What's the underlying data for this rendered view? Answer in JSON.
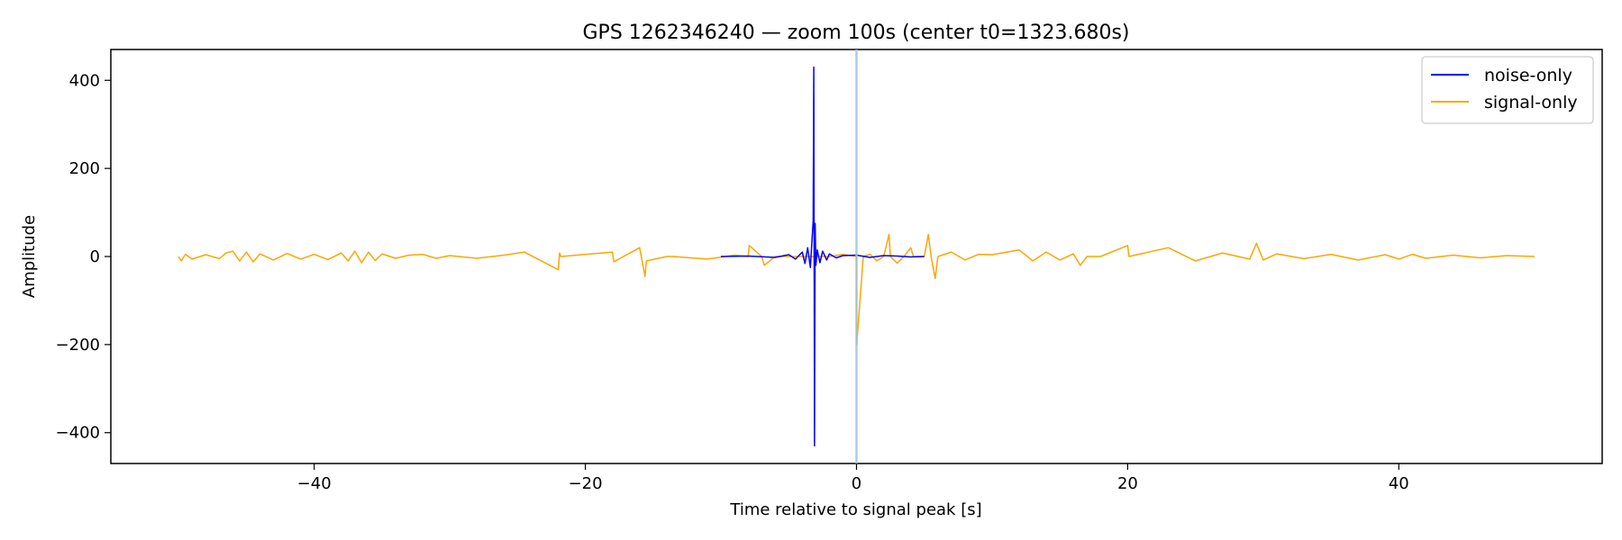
{
  "chart_data": {
    "type": "line",
    "title": "GPS 1262346240 — zoom 100s (center t0=1323.680s)",
    "xlabel": "Time relative to signal peak [s]",
    "ylabel": "Amplitude",
    "xlim": [
      -55,
      55
    ],
    "ylim": [
      -470,
      470
    ],
    "xticks": [
      -40,
      -20,
      0,
      20,
      40
    ],
    "xtick_labels": [
      "−40",
      "−20",
      "0",
      "20",
      "40"
    ],
    "yticks": [
      -400,
      -200,
      0,
      200,
      400
    ],
    "ytick_labels": [
      "−400",
      "−200",
      "0",
      "200",
      "400"
    ],
    "grid": false,
    "legend_position": "top-right",
    "vline": {
      "x": 0,
      "color": "#9bc4e2"
    },
    "series": [
      {
        "name": "noise-only",
        "color": "#0000ff",
        "x": [
          -10.0,
          -8.0,
          -6.0,
          -5.0,
          -4.5,
          -4.0,
          -3.8,
          -3.6,
          -3.4,
          -3.3,
          -3.2,
          -3.15,
          -3.1,
          -3.05,
          -3.0,
          -2.9,
          -2.7,
          -2.5,
          -2.2,
          -2.0,
          -1.5,
          -1.0,
          0.0,
          1.0,
          2.0,
          3.0,
          4.0,
          5.0
        ],
        "y": [
          0,
          1,
          -2,
          4,
          -6,
          10,
          -16,
          20,
          -25,
          30,
          80,
          430,
          -430,
          75,
          -20,
          15,
          -14,
          12,
          -8,
          6,
          -3,
          2,
          3,
          -2,
          2,
          1,
          -1,
          0
        ]
      },
      {
        "name": "signal-only",
        "color": "#ffa500",
        "x": [
          -50.0,
          -49.8,
          -49.5,
          -49.0,
          -48.0,
          -47.0,
          -46.5,
          -46.0,
          -45.5,
          -45.0,
          -44.5,
          -44.0,
          -43.0,
          -42.0,
          -41.0,
          -40.0,
          -39.0,
          -38.0,
          -37.5,
          -37.0,
          -36.5,
          -36.0,
          -35.5,
          -35.0,
          -34.0,
          -33.0,
          -32.0,
          -31.0,
          -30.0,
          -28.0,
          -26.0,
          -24.5,
          -22.0,
          -21.9,
          -21.8,
          -18.0,
          -17.9,
          -16.0,
          -15.6,
          -15.5,
          -14.0,
          -13.9,
          -13.6,
          -13.5,
          -11.0,
          -9.0,
          -8.0,
          -7.9,
          -7.0,
          -6.8,
          -6.0,
          -5.0,
          -4.0,
          -2.0,
          -1.0,
          0.0,
          0.01,
          0.5,
          1.0,
          1.5,
          2.0,
          2.4,
          2.5,
          3.0,
          3.5,
          4.0,
          4.2,
          5.0,
          5.3,
          5.5,
          5.8,
          6.0,
          7.0,
          8.0,
          9.0,
          10.0,
          12.0,
          13.0,
          14.0,
          15.0,
          16.0,
          16.5,
          17.0,
          18.0,
          20.0,
          20.1,
          23.0,
          25.0,
          27.0,
          29.0,
          29.5,
          30.0,
          31.0,
          33.0,
          35.0,
          37.0,
          39.0,
          40.0,
          41.0,
          42.0,
          44.0,
          46.0,
          48.0,
          50.0
        ],
        "y": [
          0,
          -10,
          5,
          -6,
          4,
          -5,
          8,
          12,
          -10,
          10,
          -12,
          6,
          -8,
          7,
          -6,
          5,
          -7,
          8,
          -10,
          12,
          -14,
          10,
          -9,
          6,
          -4,
          3,
          5,
          -4,
          2,
          -4,
          3,
          10,
          -30,
          8,
          0,
          10,
          -12,
          20,
          -45,
          -10,
          0,
          0,
          0,
          0,
          -6,
          3,
          0,
          25,
          0,
          -20,
          0,
          0,
          0,
          0,
          5,
          0,
          -200,
          0,
          5,
          -10,
          0,
          50,
          0,
          -15,
          0,
          20,
          0,
          0,
          50,
          0,
          -50,
          0,
          10,
          -8,
          5,
          4,
          15,
          -10,
          10,
          -8,
          6,
          -20,
          0,
          0,
          25,
          0,
          20,
          -10,
          8,
          -6,
          30,
          -8,
          6,
          -5,
          5,
          -8,
          4,
          -6,
          5,
          -4,
          3,
          -3,
          2,
          0
        ]
      }
    ]
  }
}
